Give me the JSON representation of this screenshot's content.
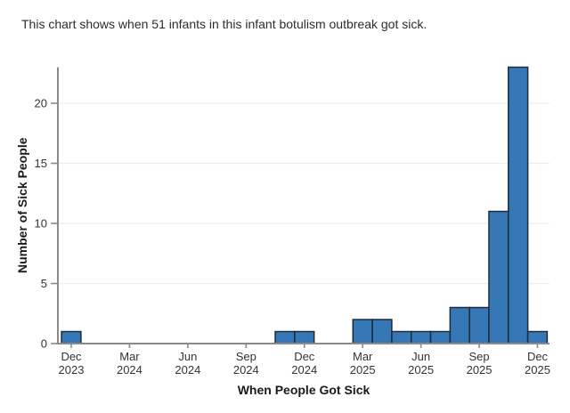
{
  "title": "This chart shows when 51 infants in this infant botulism outbreak got sick.",
  "chart_data": {
    "type": "bar",
    "subtype": "epidemic-curve-histogram",
    "title": "This chart shows when 51 infants in this infant botulism outbreak got sick.",
    "xlabel": "When People Got Sick",
    "ylabel": "Number of Sick People",
    "total_cases": 51,
    "bin_unit": "month",
    "categories": [
      "Dec 2023",
      "Jan 2024",
      "Feb 2024",
      "Mar 2024",
      "Apr 2024",
      "May 2024",
      "Jun 2024",
      "Jul 2024",
      "Aug 2024",
      "Sep 2024",
      "Oct 2024",
      "Nov 2024",
      "Dec 2024",
      "Jan 2025",
      "Feb 2025",
      "Mar 2025",
      "Apr 2025",
      "May 2025",
      "Jun 2025",
      "Jul 2025",
      "Aug 2025",
      "Sep 2025",
      "Oct 2025",
      "Nov 2025",
      "Dec 2025"
    ],
    "values": [
      1,
      0,
      0,
      0,
      0,
      0,
      0,
      0,
      0,
      0,
      0,
      1,
      1,
      0,
      0,
      2,
      2,
      1,
      1,
      1,
      3,
      3,
      11,
      23,
      1
    ],
    "x_tick_indices": [
      0,
      3,
      6,
      9,
      12,
      15,
      18,
      21,
      24
    ],
    "x_tick_labels": [
      "Dec 2023",
      "Mar 2024",
      "Jun 2024",
      "Sep 2024",
      "Dec 2024",
      "Mar 2025",
      "Jun 2025",
      "Sep 2025",
      "Dec 2025"
    ],
    "yticks": [
      0,
      5,
      10,
      15,
      20
    ],
    "ylim": [
      0,
      23
    ],
    "grid": true,
    "legend": "none",
    "colors": {
      "bar_fill": "#3578b5",
      "bar_border": "#1e2b39",
      "grid": "#ececec",
      "axis": "#8a8a8a",
      "tick_label": "#333333",
      "axis_label": "#1a1a1a",
      "title": "#2d2d2d"
    }
  }
}
